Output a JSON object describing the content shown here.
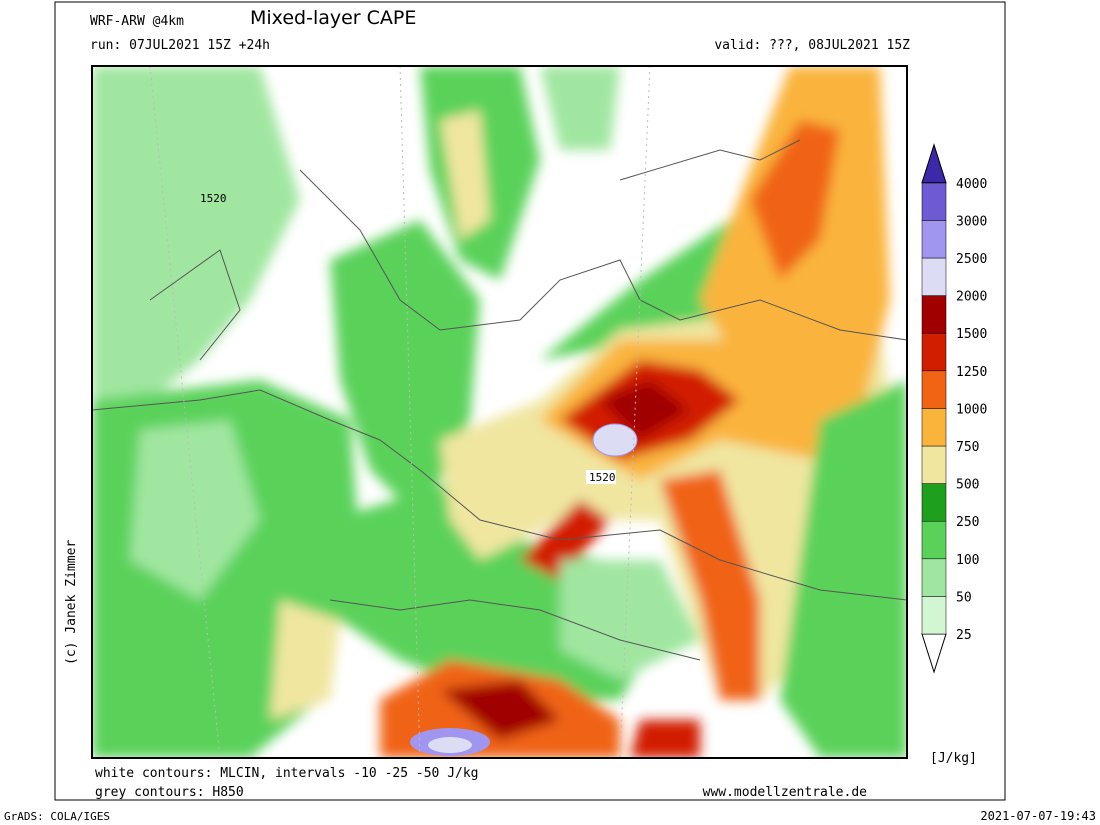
{
  "header": {
    "model": "WRF-ARW @4km",
    "title": "Mixed-layer CAPE",
    "run": "run: 07JUL2021 15Z +24h",
    "valid": "valid: ???, 08JUL2021 15Z"
  },
  "map": {
    "contour_labels": [
      "1520",
      "1520"
    ]
  },
  "credit": "(c) Janek Zimmer",
  "footer": {
    "line1": "white contours: MLCIN, intervals -10 -25 -50 J/kg",
    "line2": "grey contours: H850",
    "website": "www.modellzentrale.de"
  },
  "colorbar": {
    "unit": "[J/kg]",
    "levels": [
      25,
      50,
      100,
      250,
      500,
      750,
      1000,
      1250,
      1500,
      2000,
      2500,
      3000,
      4000
    ],
    "below_color": "#ffffff",
    "colors": [
      "#d2f5d2",
      "#a0e6a0",
      "#5ad25a",
      "#1ea01e",
      "#f0e6a0",
      "#fab43c",
      "#f06414",
      "#d21e00",
      "#a00000",
      "#dcdcf5",
      "#a096f0",
      "#6e5ad2"
    ],
    "above_color": "#3c28aa"
  },
  "bottom": {
    "left": "GrADS: COLA/IGES",
    "right": "2021-07-07-19:43"
  }
}
